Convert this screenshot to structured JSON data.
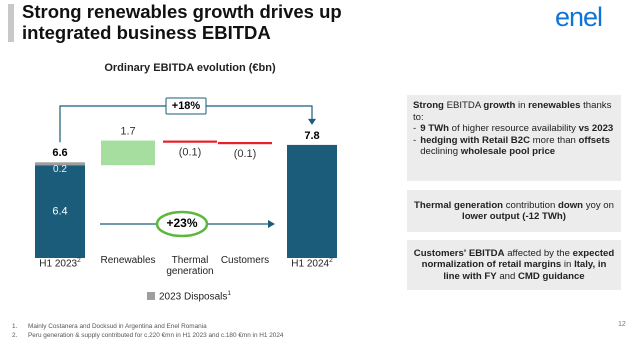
{
  "slide": {
    "title": "Strong renewables growth drives up integrated business EBITDA",
    "logo": "enel",
    "page_number": "12",
    "bullet_marker": "-",
    "boxes": [
      {
        "align": "left",
        "intro": [
          {
            "text": "Strong",
            "bold": true
          },
          {
            "text": " EBITDA ",
            "bold": false
          },
          {
            "text": "growth",
            "bold": true
          },
          {
            "text": " in ",
            "bold": false
          },
          {
            "text": "renewables",
            "bold": true
          },
          {
            "text": " thanks to:",
            "bold": false
          }
        ],
        "bullets": [
          [
            {
              "text": "9 TWh",
              "bold": true
            },
            {
              "text": " of higher resource availability ",
              "bold": false
            },
            {
              "text": "vs 2023",
              "bold": true
            }
          ],
          [
            {
              "text": "hedging with Retail B2C",
              "bold": true
            },
            {
              "text": " more than ",
              "bold": false
            },
            {
              "text": "offsets",
              "bold": true
            },
            {
              "text": " declining ",
              "bold": false
            },
            {
              "text": "wholesale pool price",
              "bold": true
            }
          ]
        ]
      },
      {
        "align": "center",
        "intro": [
          {
            "text": "Thermal generation",
            "bold": true
          },
          {
            "text": " contribution ",
            "bold": false
          },
          {
            "text": "down",
            "bold": true
          },
          {
            "text": " yoy on ",
            "bold": false
          },
          {
            "text": "lower output (-12 TWh)",
            "bold": true
          }
        ],
        "bullets": []
      },
      {
        "align": "center",
        "intro": [
          {
            "text": "Customers' EBITDA",
            "bold": true
          },
          {
            "text": " affected by the ",
            "bold": false
          },
          {
            "text": "expected normalization of retail margins",
            "bold": true
          },
          {
            "text": " in ",
            "bold": false
          },
          {
            "text": "Italy, in line with",
            "bold": true
          },
          {
            "text": " ",
            "bold": false
          },
          {
            "text": "FY",
            "bold": true
          },
          {
            "text": " and ",
            "bold": false
          },
          {
            "text": "CMD guidance",
            "bold": true
          }
        ],
        "bullets": []
      }
    ],
    "footnotes": [
      {
        "number": "1.",
        "text": "Mainly Costanera and Docksud in Argentina and Enel Romania"
      },
      {
        "number": "2.",
        "text": "Peru generation & supply contributed for c.220 €mn in H1 2023 and c.180 €mn in H1 2024"
      }
    ]
  },
  "chart_data": {
    "type": "waterfall",
    "title": "Ordinary EBITDA evolution (€bn)",
    "categories": [
      "H1 2023",
      "Renewables",
      "Thermal generation",
      "Customers",
      "H1 2024"
    ],
    "category_notes": [
      "2",
      null,
      null,
      null,
      "2"
    ],
    "values": [
      6.4,
      1.7,
      -0.1,
      -0.1,
      7.8
    ],
    "value_labels": [
      "6.4",
      "1.7",
      "(0.1)",
      "(0.1)",
      "7.8"
    ],
    "is_total": [
      true,
      false,
      false,
      false,
      true
    ],
    "total_color": "#1a5c7a",
    "increase_color": "#a6dea0",
    "decrease_color": "#e8202a",
    "start_total": 6.6,
    "disposals": {
      "name": "2023 Disposals",
      "note": "1",
      "value": 0.2,
      "color": "#9e9e9e"
    },
    "annotations": [
      {
        "text": "+18%",
        "from": 0,
        "to": 4,
        "style": "bracket"
      },
      {
        "text": "+23%",
        "from": 0,
        "to": 4,
        "style": "arrow"
      }
    ]
  }
}
